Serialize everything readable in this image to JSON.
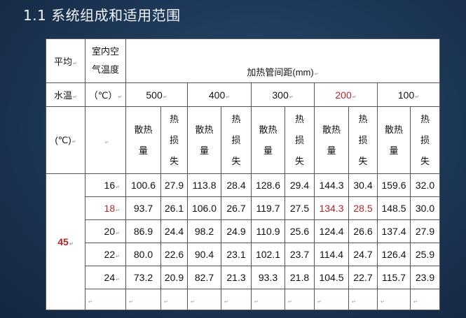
{
  "slide": {
    "title": "1.1  系统组成和适用范围"
  },
  "table": {
    "corner": {
      "r1c1": "平均",
      "r2c1": "水温",
      "r3c1": "(℃)",
      "r1c2a": "室内空",
      "r1c2b": "气温度",
      "r2c2": "（℃）"
    },
    "spacing_header": "加热管间距(mm)",
    "spacings": [
      "500",
      "400",
      "300",
      "200",
      "100"
    ],
    "sub_headers": {
      "heat_dissipation": [
        "散热",
        "量"
      ],
      "heat_loss": [
        "热",
        "损",
        "失"
      ]
    },
    "water_temp": "45",
    "highlight_color": "#b0262b",
    "rows": [
      {
        "room_temp": "16",
        "values": [
          "100.6",
          "27.9",
          "113.8",
          "28.4",
          "128.6",
          "29.4",
          "144.3",
          "30.4",
          "159.6",
          "32.0"
        ]
      },
      {
        "room_temp": "18",
        "values": [
          "93.7",
          "26.1",
          "106.0",
          "26.7",
          "119.7",
          "27.5",
          "134.3",
          "28.5",
          "148.5",
          "30.0"
        ]
      },
      {
        "room_temp": "20",
        "values": [
          "86.9",
          "24.4",
          "98.2",
          "24.9",
          "110.9",
          "25.6",
          "124.4",
          "26.6",
          "137.4",
          "27.9"
        ]
      },
      {
        "room_temp": "22",
        "values": [
          "80.0",
          "22.6",
          "90.4",
          "23.1",
          "102.1",
          "23.7",
          "114.4",
          "24.7",
          "126.4",
          "25.9"
        ]
      },
      {
        "room_temp": "24",
        "values": [
          "73.2",
          "20.9",
          "82.7",
          "21.3",
          "93.3",
          "21.8",
          "104.5",
          "22.7",
          "115.7",
          "23.9"
        ]
      }
    ]
  }
}
